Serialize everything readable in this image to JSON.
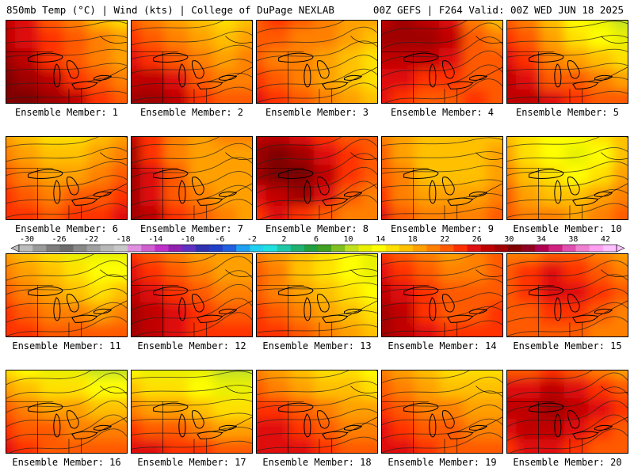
{
  "header": {
    "left": "850mb Temp (°C) | Wind (kts) | College of DuPage NEXLAB",
    "right": "00Z GEFS | F264 Valid: 00Z WED JUN 18 2025"
  },
  "colors": {
    "legend": [
      "#bcbcbc",
      "#9a9a9a",
      "#7d7d7d",
      "#6c6c6c",
      "#888888",
      "#a0a0a0",
      "#b8b8b8",
      "#c8c8c8",
      "#e090e0",
      "#d060d0",
      "#c030c8",
      "#9020b0",
      "#6030c0",
      "#3030b0",
      "#2040c8",
      "#2060e0",
      "#20a0f0",
      "#20d0f0",
      "#20e0e0",
      "#20c8a8",
      "#20b070",
      "#20a040",
      "#40a020",
      "#80c020",
      "#c0e020",
      "#e8f000",
      "#ffff00",
      "#ffe000",
      "#ffc000",
      "#ffa000",
      "#ff8000",
      "#ff5a00",
      "#ff3000",
      "#e01010",
      "#c00000",
      "#a00000",
      "#800000",
      "#900020",
      "#b00050",
      "#d02080",
      "#e050b0",
      "#f080d0",
      "#ff9ff0",
      "#ffc0ff"
    ]
  },
  "colorbar": {
    "ticks": [
      "-30",
      "-26",
      "-22",
      "-18",
      "-14",
      "-10",
      "-6",
      "-2",
      "2",
      "6",
      "10",
      "14",
      "18",
      "22",
      "26",
      "30",
      "34",
      "38",
      "42"
    ]
  },
  "panels": [
    {
      "label": "Ensemble Member: 1",
      "levels": [
        [
          24,
          22,
          18,
          16,
          12,
          10
        ],
        [
          24,
          22,
          20,
          18,
          16,
          14
        ],
        [
          26,
          24,
          20,
          18,
          16,
          14
        ],
        [
          28,
          26,
          24,
          20,
          18,
          16
        ],
        [
          28,
          28,
          26,
          24,
          20,
          18
        ]
      ]
    },
    {
      "label": "Ensemble Member: 2",
      "levels": [
        [
          18,
          16,
          14,
          12,
          10,
          12
        ],
        [
          20,
          18,
          16,
          14,
          12,
          14
        ],
        [
          22,
          20,
          18,
          16,
          14,
          16
        ],
        [
          24,
          24,
          22,
          18,
          16,
          16
        ],
        [
          26,
          26,
          24,
          20,
          18,
          18
        ]
      ]
    },
    {
      "label": "Ensemble Member: 3",
      "levels": [
        [
          18,
          20,
          18,
          16,
          14,
          14
        ],
        [
          18,
          18,
          16,
          16,
          14,
          12
        ],
        [
          18,
          16,
          16,
          14,
          12,
          10
        ],
        [
          20,
          18,
          16,
          14,
          12,
          10
        ],
        [
          22,
          20,
          18,
          16,
          14,
          12
        ]
      ]
    },
    {
      "label": "Ensemble Member: 4",
      "levels": [
        [
          24,
          26,
          24,
          22,
          16,
          12
        ],
        [
          26,
          26,
          26,
          24,
          18,
          16
        ],
        [
          24,
          24,
          24,
          22,
          18,
          18
        ],
        [
          22,
          22,
          20,
          20,
          18,
          18
        ],
        [
          22,
          20,
          18,
          18,
          20,
          18
        ]
      ]
    },
    {
      "label": "Ensemble Member: 5",
      "levels": [
        [
          18,
          16,
          12,
          8,
          6,
          4
        ],
        [
          20,
          18,
          14,
          10,
          8,
          6
        ],
        [
          22,
          20,
          16,
          14,
          12,
          10
        ],
        [
          24,
          22,
          18,
          18,
          16,
          14
        ],
        [
          24,
          24,
          22,
          20,
          18,
          18
        ]
      ]
    },
    {
      "label": "Ensemble Member: 6",
      "levels": [
        [
          14,
          12,
          10,
          10,
          12,
          14
        ],
        [
          16,
          14,
          12,
          12,
          14,
          16
        ],
        [
          18,
          16,
          14,
          14,
          16,
          18
        ],
        [
          20,
          18,
          16,
          18,
          18,
          20
        ],
        [
          20,
          20,
          18,
          20,
          20,
          22
        ]
      ]
    },
    {
      "label": "Ensemble Member: 7",
      "levels": [
        [
          24,
          20,
          16,
          14,
          16,
          16
        ],
        [
          26,
          20,
          16,
          14,
          14,
          14
        ],
        [
          26,
          22,
          18,
          14,
          14,
          14
        ],
        [
          26,
          22,
          18,
          16,
          14,
          14
        ],
        [
          26,
          24,
          20,
          18,
          16,
          14
        ]
      ]
    },
    {
      "label": "Ensemble Member: 8",
      "levels": [
        [
          24,
          24,
          22,
          20,
          18,
          18
        ],
        [
          26,
          28,
          26,
          22,
          20,
          18
        ],
        [
          26,
          28,
          28,
          24,
          20,
          18
        ],
        [
          22,
          24,
          26,
          22,
          18,
          16
        ],
        [
          20,
          22,
          20,
          18,
          16,
          16
        ]
      ]
    },
    {
      "label": "Ensemble Member: 9",
      "levels": [
        [
          16,
          14,
          12,
          12,
          12,
          12
        ],
        [
          18,
          14,
          12,
          12,
          12,
          14
        ],
        [
          18,
          16,
          12,
          12,
          12,
          14
        ],
        [
          20,
          16,
          14,
          14,
          14,
          16
        ],
        [
          22,
          18,
          16,
          16,
          16,
          18
        ]
      ]
    },
    {
      "label": "Ensemble Member: 10",
      "levels": [
        [
          12,
          10,
          8,
          8,
          10,
          12
        ],
        [
          14,
          10,
          8,
          6,
          8,
          12
        ],
        [
          16,
          12,
          10,
          8,
          10,
          14
        ],
        [
          18,
          14,
          12,
          12,
          14,
          16
        ],
        [
          18,
          16,
          16,
          14,
          16,
          18
        ]
      ]
    },
    {
      "label": "Ensemble Member: 11",
      "levels": [
        [
          14,
          12,
          10,
          6,
          6,
          6
        ],
        [
          16,
          14,
          12,
          10,
          8,
          8
        ],
        [
          18,
          16,
          14,
          12,
          10,
          12
        ],
        [
          20,
          18,
          16,
          16,
          14,
          16
        ],
        [
          20,
          20,
          18,
          18,
          18,
          18
        ]
      ]
    },
    {
      "label": "Ensemble Member: 12",
      "levels": [
        [
          20,
          18,
          16,
          14,
          14,
          14
        ],
        [
          22,
          20,
          18,
          16,
          14,
          14
        ],
        [
          24,
          22,
          20,
          18,
          16,
          16
        ],
        [
          26,
          24,
          22,
          20,
          18,
          18
        ],
        [
          26,
          24,
          22,
          20,
          20,
          20
        ]
      ]
    },
    {
      "label": "Ensemble Member: 13",
      "levels": [
        [
          16,
          14,
          12,
          10,
          8,
          6
        ],
        [
          18,
          16,
          12,
          10,
          8,
          6
        ],
        [
          18,
          16,
          14,
          12,
          10,
          8
        ],
        [
          20,
          18,
          16,
          14,
          12,
          10
        ],
        [
          20,
          20,
          18,
          16,
          14,
          12
        ]
      ]
    },
    {
      "label": "Ensemble Member: 14",
      "levels": [
        [
          20,
          18,
          16,
          14,
          16,
          18
        ],
        [
          22,
          20,
          18,
          16,
          16,
          18
        ],
        [
          24,
          22,
          20,
          18,
          18,
          18
        ],
        [
          26,
          24,
          20,
          18,
          18,
          20
        ],
        [
          26,
          24,
          22,
          20,
          20,
          20
        ]
      ]
    },
    {
      "label": "Ensemble Member: 15",
      "levels": [
        [
          16,
          16,
          18,
          18,
          16,
          14
        ],
        [
          18,
          20,
          22,
          20,
          18,
          16
        ],
        [
          18,
          20,
          22,
          22,
          20,
          18
        ],
        [
          18,
          18,
          20,
          20,
          18,
          16
        ],
        [
          18,
          18,
          18,
          18,
          16,
          16
        ]
      ]
    },
    {
      "label": "Ensemble Member: 16",
      "levels": [
        [
          10,
          8,
          6,
          6,
          4,
          4
        ],
        [
          14,
          12,
          10,
          10,
          8,
          8
        ],
        [
          18,
          16,
          14,
          14,
          12,
          12
        ],
        [
          20,
          18,
          18,
          16,
          16,
          16
        ],
        [
          22,
          20,
          18,
          18,
          18,
          18
        ]
      ]
    },
    {
      "label": "Ensemble Member: 17",
      "levels": [
        [
          8,
          6,
          6,
          6,
          4,
          4
        ],
        [
          12,
          10,
          10,
          8,
          6,
          6
        ],
        [
          16,
          14,
          14,
          12,
          10,
          10
        ],
        [
          20,
          18,
          18,
          16,
          14,
          14
        ],
        [
          22,
          22,
          20,
          20,
          18,
          18
        ]
      ]
    },
    {
      "label": "Ensemble Member: 18",
      "levels": [
        [
          16,
          14,
          12,
          10,
          10,
          8
        ],
        [
          18,
          16,
          14,
          12,
          12,
          10
        ],
        [
          20,
          20,
          18,
          16,
          14,
          14
        ],
        [
          22,
          22,
          20,
          18,
          16,
          16
        ],
        [
          22,
          22,
          22,
          20,
          18,
          18
        ]
      ]
    },
    {
      "label": "Ensemble Member: 19",
      "levels": [
        [
          16,
          14,
          12,
          10,
          10,
          10
        ],
        [
          18,
          16,
          14,
          12,
          12,
          12
        ],
        [
          20,
          18,
          16,
          16,
          14,
          14
        ],
        [
          22,
          20,
          18,
          18,
          16,
          16
        ],
        [
          22,
          22,
          20,
          18,
          18,
          18
        ]
      ]
    },
    {
      "label": "Ensemble Member: 20",
      "levels": [
        [
          18,
          18,
          20,
          18,
          16,
          14
        ],
        [
          22,
          22,
          24,
          22,
          20,
          18
        ],
        [
          24,
          24,
          26,
          24,
          22,
          20
        ],
        [
          22,
          24,
          24,
          22,
          20,
          18
        ],
        [
          20,
          22,
          22,
          20,
          18,
          18
        ]
      ]
    }
  ]
}
